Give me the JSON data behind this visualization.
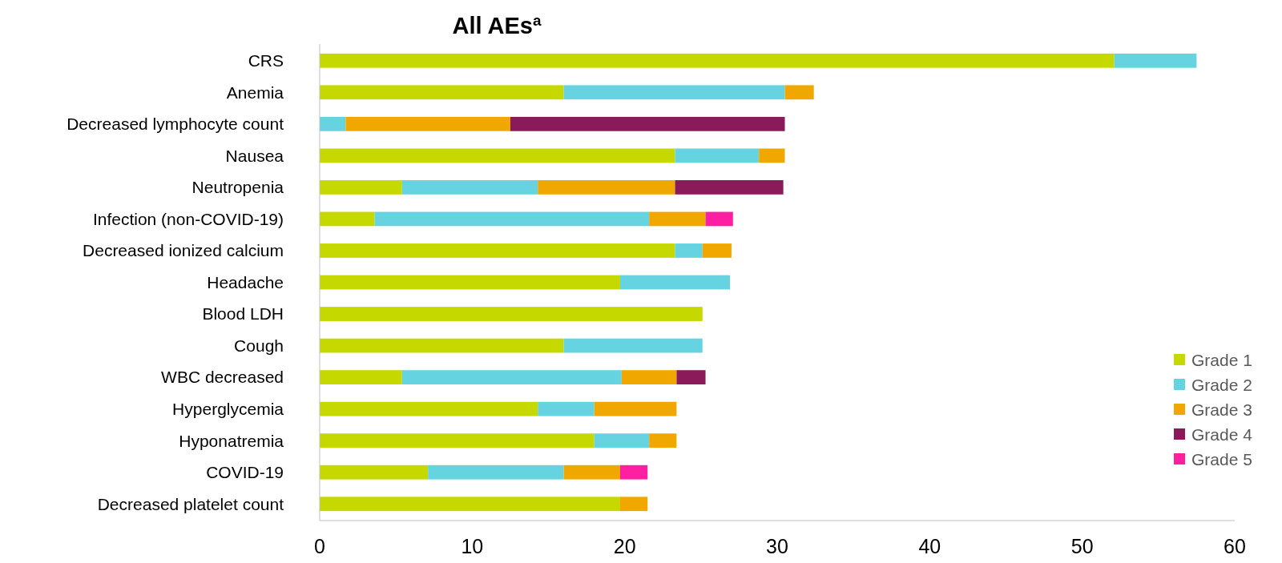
{
  "chart_data": {
    "type": "bar",
    "orientation": "horizontal",
    "stacked": true,
    "title": "All AEs$^{a}$",
    "categories": [
      "CRS",
      "Anemia",
      "Decreased lymphocyte count",
      "Nausea",
      "Neutropenia",
      "Infection (non-COVID-19)",
      "Decreased ionized calcium",
      "Headache",
      "Blood LDH",
      "Cough",
      "WBC decreased",
      "Hyperglycemia",
      "Hyponatremia",
      "COVID-19",
      "Decreased platelet count"
    ],
    "series": [
      {
        "name": "Grade 1",
        "color": "#c5d800",
        "values": [
          52.1,
          16.0,
          null,
          23.3,
          5.4,
          3.6,
          23.3,
          19.7,
          25.1,
          16.0,
          5.4,
          14.3,
          18.0,
          7.1,
          19.7
        ]
      },
      {
        "name": "Grade 2",
        "color": "#66d3e0",
        "values": [
          5.4,
          14.5,
          1.7,
          5.5,
          8.9,
          18.0,
          1.8,
          7.2,
          null,
          9.1,
          14.4,
          3.7,
          3.6,
          8.9,
          null
        ]
      },
      {
        "name": "Grade 3",
        "color": "#f0a800",
        "values": [
          null,
          1.9,
          10.8,
          1.7,
          9.0,
          3.7,
          1.9,
          null,
          null,
          null,
          3.6,
          5.4,
          1.8,
          3.7,
          1.8
        ]
      },
      {
        "name": "Grade 4",
        "color": "#8b1a5a",
        "values": [
          null,
          null,
          18.0,
          null,
          7.1,
          null,
          null,
          null,
          null,
          null,
          1.9,
          null,
          null,
          null,
          null
        ]
      },
      {
        "name": "Grade 5",
        "color": "#ff1fa0",
        "values": [
          null,
          null,
          null,
          null,
          null,
          1.8,
          null,
          null,
          null,
          null,
          null,
          null,
          null,
          1.8,
          null
        ]
      }
    ],
    "xlim": [
      0,
      60
    ],
    "xticks": [
      0,
      10,
      20,
      30,
      40,
      50,
      60
    ],
    "legend": "bottom right",
    "grid": false
  }
}
